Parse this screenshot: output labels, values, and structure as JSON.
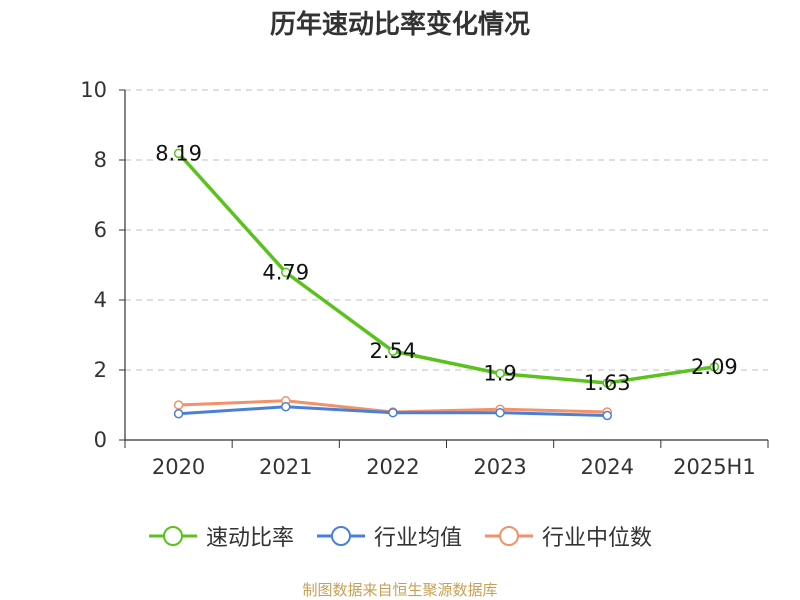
{
  "chart_data": {
    "type": "line",
    "title": "历年速动比率变化情况",
    "categories": [
      "2020",
      "2021",
      "2022",
      "2023",
      "2024",
      "2025H1"
    ],
    "ylim": [
      0,
      10
    ],
    "yticks": [
      "0",
      "2",
      "4",
      "6",
      "8",
      "10"
    ],
    "grid": true,
    "legend_position": "bottom",
    "series": [
      {
        "name": "速动比率",
        "color": "#5ac21c",
        "values": [
          8.19,
          4.79,
          2.54,
          1.9,
          1.63,
          2.09
        ],
        "labels": [
          "8.19",
          "4.79",
          "2.54",
          "1.9",
          "1.63",
          "2.09"
        ]
      },
      {
        "name": "行业均值",
        "color": "#4a7fd8",
        "values": [
          0.75,
          0.95,
          0.78,
          0.78,
          0.7,
          null
        ]
      },
      {
        "name": "行业中位数",
        "color": "#f0926a",
        "values": [
          1.0,
          1.12,
          0.8,
          0.88,
          0.8,
          null
        ]
      }
    ]
  },
  "footer": {
    "source": "制图数据来自恒生聚源数据库"
  }
}
